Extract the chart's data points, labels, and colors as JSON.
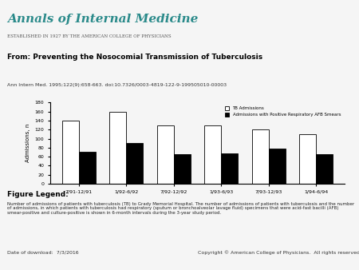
{
  "categories": [
    "7/91-12/91",
    "1/92-6/92",
    "7/92-12/92",
    "1/93-6/93",
    "7/93-12/93",
    "1/94-6/94"
  ],
  "tb_admissions": [
    140,
    160,
    130,
    130,
    120,
    110
  ],
  "afb_admissions": [
    70,
    90,
    65,
    68,
    78,
    65
  ],
  "bar_width": 0.35,
  "ylabel": "Admissions, n",
  "ylim": [
    0,
    180
  ],
  "yticks": [
    0,
    20,
    40,
    60,
    80,
    100,
    120,
    140,
    160,
    180
  ],
  "legend_tb": "TB Admissions",
  "legend_afb": "Admissions with Positive Respiratory AFB Smears",
  "color_tb": "#ffffff",
  "color_afb": "#000000",
  "edgecolor": "#000000",
  "title": "From: Preventing the Nosocomial Transmission of Tuberculosis",
  "subtitle": "Ann Intern Med. 1995;122(9):658-663. doi:10.7326/0003-4819-122-9-199505010-00003",
  "figure_legend_title": "Figure Legend:",
  "figure_legend_text": "Number of admissions of patients with tuberculosis (TB) to Grady Memorial Hospital. The number of admissions of patients with tuberculosis and the number of admissions, in which patients with tuberculosis had respiratory (sputum or bronchoalveolar lavage fluid) specimens that were acid-fast bacilli (AFB) smear-positive and culture-positive is shown in 6-month intervals during the 3-year study period.",
  "header_title": "Annals of Internal Medicine",
  "header_subtitle": "ESTABLISHED IN 1927 BY THE AMERICAN COLLEGE OF PHYSICIANS",
  "footer_date": "Date of download:  7/3/2016",
  "footer_copyright": "Copyright © American College of Physicians.  All rights reserved.",
  "bg_header": "#e8e8e8",
  "bg_body": "#f5f5f5",
  "header_title_color": "#2a8a8a",
  "header_subtitle_color": "#555555"
}
